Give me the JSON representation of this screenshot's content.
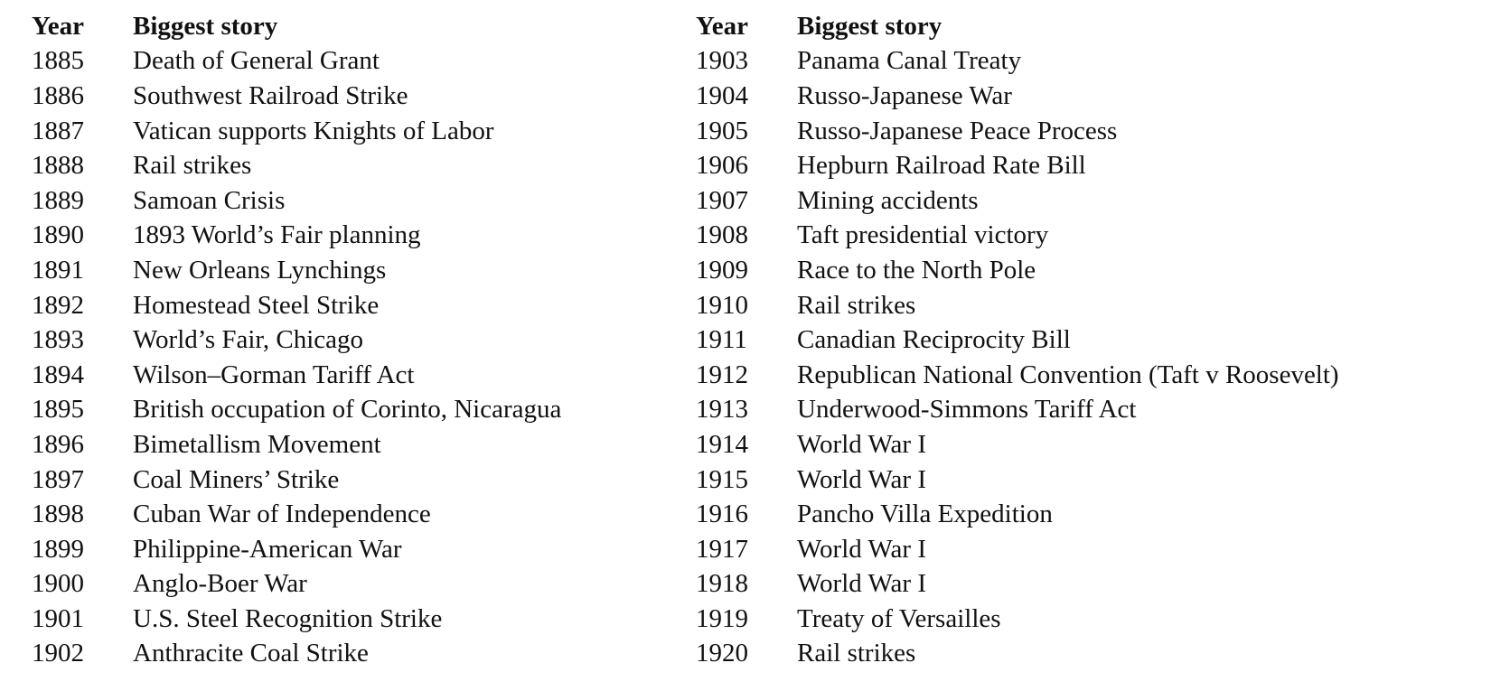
{
  "headers": {
    "year": "Year",
    "story": "Biggest story"
  },
  "left_rows": [
    {
      "year": "1885",
      "story": "Death of General Grant"
    },
    {
      "year": "1886",
      "story": "Southwest Railroad Strike"
    },
    {
      "year": "1887",
      "story": "Vatican supports Knights of Labor"
    },
    {
      "year": "1888",
      "story": "Rail strikes"
    },
    {
      "year": "1889",
      "story": "Samoan Crisis"
    },
    {
      "year": "1890",
      "story": "1893 World’s Fair planning"
    },
    {
      "year": "1891",
      "story": "New Orleans Lynchings"
    },
    {
      "year": "1892",
      "story": "Homestead Steel Strike"
    },
    {
      "year": "1893",
      "story": "World’s Fair, Chicago"
    },
    {
      "year": "1894",
      "story": "Wilson–Gorman Tariff Act"
    },
    {
      "year": "1895",
      "story": "British occupation of Corinto, Nicaragua"
    },
    {
      "year": "1896",
      "story": "Bimetallism Movement"
    },
    {
      "year": "1897",
      "story": "Coal Miners’ Strike"
    },
    {
      "year": "1898",
      "story": "Cuban War of Independence"
    },
    {
      "year": "1899",
      "story": "Philippine-American War"
    },
    {
      "year": "1900",
      "story": "Anglo-Boer War"
    },
    {
      "year": "1901",
      "story": "U.S. Steel Recognition Strike"
    },
    {
      "year": "1902",
      "story": "Anthracite Coal Strike"
    }
  ],
  "right_rows": [
    {
      "year": "1903",
      "story": "Panama Canal Treaty"
    },
    {
      "year": "1904",
      "story": "Russo-Japanese War"
    },
    {
      "year": "1905",
      "story": "Russo-Japanese Peace Process"
    },
    {
      "year": "1906",
      "story": "Hepburn Railroad Rate Bill"
    },
    {
      "year": "1907",
      "story": "Mining accidents"
    },
    {
      "year": "1908",
      "story": "Taft presidential victory"
    },
    {
      "year": "1909",
      "story": "Race to the North Pole"
    },
    {
      "year": "1910",
      "story": "Rail strikes"
    },
    {
      "year": "1911",
      "story": "Canadian Reciprocity Bill"
    },
    {
      "year": "1912",
      "story": "Republican National Convention (Taft v Roosevelt)"
    },
    {
      "year": "1913",
      "story": "Underwood-Simmons Tariff Act"
    },
    {
      "year": "1914",
      "story": "World War I"
    },
    {
      "year": "1915",
      "story": "World War I"
    },
    {
      "year": "1916",
      "story": "Pancho Villa Expedition"
    },
    {
      "year": "1917",
      "story": "World War I"
    },
    {
      "year": "1918",
      "story": "World War I"
    },
    {
      "year": "1919",
      "story": "Treaty of Versailles"
    },
    {
      "year": "1920",
      "story": "Rail strikes"
    }
  ]
}
